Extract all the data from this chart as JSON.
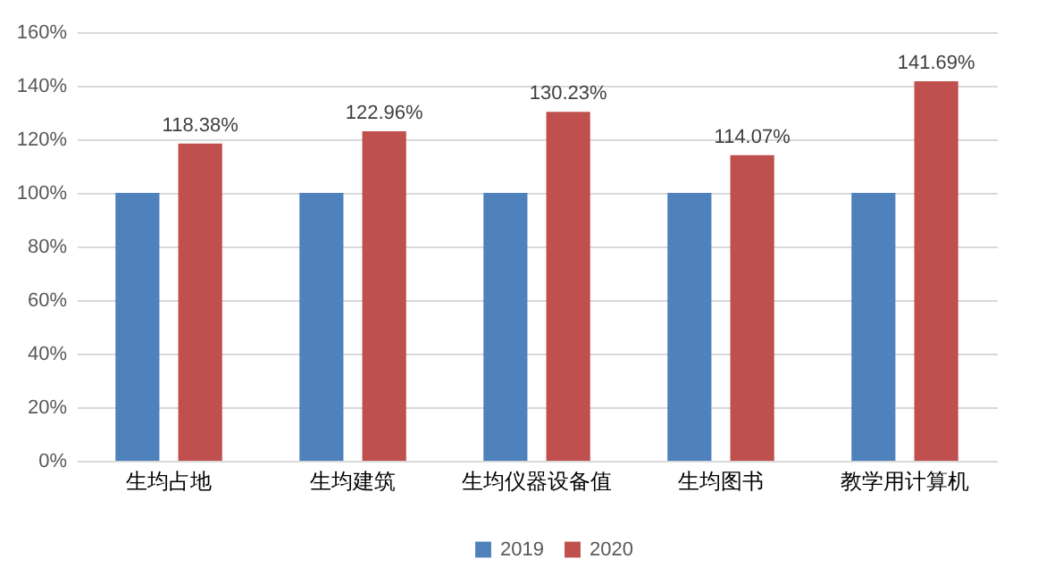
{
  "chart_data": {
    "type": "bar",
    "categories": [
      "生均占地",
      "生均建筑",
      "生均仪器设备值",
      "生均图书",
      "教学用计算机"
    ],
    "series": [
      {
        "name": "2019",
        "color": "#4f81bd",
        "values": [
          100,
          100,
          100,
          100,
          100
        ]
      },
      {
        "name": "2020",
        "color": "#c0504d",
        "values": [
          118.38,
          122.96,
          130.23,
          114.07,
          141.69
        ],
        "value_labels": [
          "118.38%",
          "122.96%",
          "130.23%",
          "114.07%",
          "141.69%"
        ]
      }
    ],
    "ylim": [
      0,
      160
    ],
    "yticks": [
      {
        "value": 0,
        "label": "0%"
      },
      {
        "value": 20,
        "label": "20%"
      },
      {
        "value": 40,
        "label": "40%"
      },
      {
        "value": 60,
        "label": "60%"
      },
      {
        "value": 80,
        "label": "80%"
      },
      {
        "value": 100,
        "label": "100%"
      },
      {
        "value": 120,
        "label": "120%"
      },
      {
        "value": 140,
        "label": "140%"
      },
      {
        "value": 160,
        "label": "160%"
      }
    ],
    "grid": "y",
    "legend": "bottom"
  }
}
